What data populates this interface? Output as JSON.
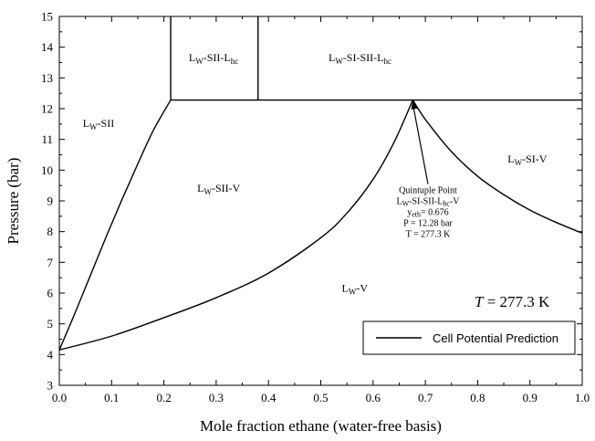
{
  "chart_data": {
    "type": "line",
    "xlabel": "Mole fraction ethane (water-free basis)",
    "ylabel": "Pressure (bar)",
    "xlim": [
      0.0,
      1.0
    ],
    "ylim": [
      3,
      15
    ],
    "xticks": [
      "0.0",
      "0.1",
      "0.2",
      "0.3",
      "0.4",
      "0.5",
      "0.6",
      "0.7",
      "0.8",
      "0.9",
      "1.0"
    ],
    "yticks": [
      "3",
      "4",
      "5",
      "6",
      "7",
      "8",
      "9",
      "10",
      "11",
      "12",
      "13",
      "14",
      "15"
    ],
    "grid": false,
    "legend": {
      "position": "bottom-right",
      "entries": [
        "Cell Potential Prediction"
      ]
    },
    "temperature_label": {
      "italic": "T",
      "rest": " = 277.3 K"
    },
    "series": [
      {
        "name": "Cell Potential Prediction",
        "segments": [
          {
            "id": "lw-sii-boundary",
            "x": [
              0.0,
              0.03,
              0.06,
              0.09,
              0.12,
              0.15,
              0.18,
              0.213
            ],
            "y": [
              4.15,
              5.35,
              6.6,
              7.85,
              9.05,
              10.2,
              11.3,
              12.28
            ]
          },
          {
            "id": "lw-v-lower-boundary",
            "x": [
              0.0,
              0.1,
              0.2,
              0.3,
              0.4,
              0.5,
              0.55,
              0.6,
              0.64,
              0.676
            ],
            "y": [
              4.15,
              4.6,
              5.2,
              5.85,
              6.65,
              7.8,
              8.6,
              9.7,
              10.9,
              12.28
            ]
          },
          {
            "id": "lw-si-v-boundary",
            "x": [
              0.676,
              0.7,
              0.75,
              0.8,
              0.85,
              0.9,
              0.95,
              1.0
            ],
            "y": [
              12.28,
              11.65,
              10.6,
              9.8,
              9.2,
              8.7,
              8.3,
              7.95
            ]
          },
          {
            "id": "horizontal-three-phase-line",
            "x": [
              0.213,
              1.0
            ],
            "y": [
              12.28,
              12.28
            ]
          },
          {
            "id": "vertical-line-left",
            "x": [
              0.213,
              0.213
            ],
            "y": [
              12.28,
              15
            ]
          },
          {
            "id": "vertical-line-right",
            "x": [
              0.38,
              0.38
            ],
            "y": [
              12.28,
              15
            ]
          }
        ]
      }
    ],
    "regions": [
      {
        "id": "lw-sii",
        "main": "L",
        "sub": "W",
        "rest": "-SII",
        "x": 0.075,
        "y": 11.4
      },
      {
        "id": "lw-sii-lhc",
        "main": "L",
        "sub": "W",
        "rest": "-SII-L",
        "sub2": "hc",
        "x": 0.295,
        "y": 13.55
      },
      {
        "id": "lw-si-sii-lhc",
        "main": "L",
        "sub": "W",
        "rest": "-SI-SII-L",
        "sub2": "hc",
        "x": 0.575,
        "y": 13.55
      },
      {
        "id": "lw-sii-v",
        "main": "L",
        "sub": "W",
        "rest": "-SII-V",
        "x": 0.305,
        "y": 9.3
      },
      {
        "id": "lw-si-v",
        "main": "L",
        "sub": "W",
        "rest": "-SI-V",
        "x": 0.895,
        "y": 10.25
      },
      {
        "id": "lw-v",
        "main": "L",
        "sub": "W",
        "rest": "-V",
        "x": 0.565,
        "y": 6.05
      }
    ],
    "annotation": {
      "arrow_to": {
        "x": 0.676,
        "y": 12.28
      },
      "arrow_from": {
        "x": 0.705,
        "y": 9.55
      },
      "lines": [
        {
          "id": "quintuple-title",
          "text": "Quintuple Point"
        },
        {
          "id": "quintuple-phases",
          "main": "L",
          "sub": "W",
          "rest": "-SI-SII-L",
          "sub2": "hc",
          "rest2": "-V"
        },
        {
          "id": "quintuple-y",
          "main": "y",
          "sub": "eth",
          "rest": "= 0.676"
        },
        {
          "id": "quintuple-p",
          "text": "P = 12.28 bar"
        },
        {
          "id": "quintuple-t",
          "text": "T = 277.3 K"
        }
      ]
    }
  }
}
